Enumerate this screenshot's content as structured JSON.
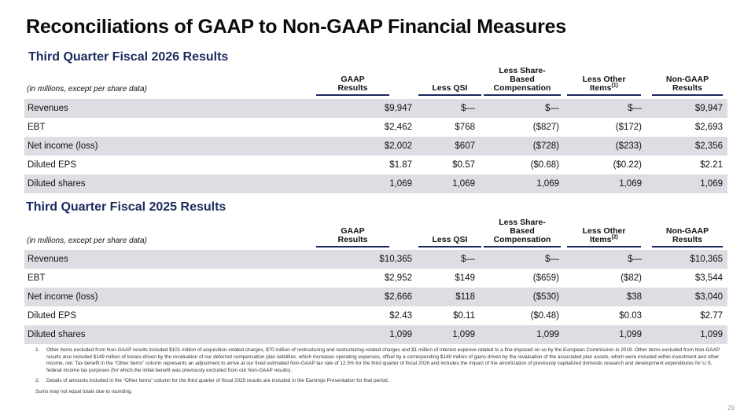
{
  "title": "Reconciliations of GAAP to Non-GAAP Financial Measures",
  "columns": {
    "unit_note": "(in millions, except per share data)",
    "gaap": [
      "GAAP",
      "Results"
    ],
    "qsi": "Less QSI",
    "sbc": [
      "Less Share-",
      "Based",
      "Compensation"
    ],
    "other": "Less Other",
    "other_line2": "Items",
    "nongaap": [
      "Non-GAAP",
      "Results"
    ]
  },
  "tables": [
    {
      "title": "Third Quarter Fiscal 2026 Results",
      "other_sup": "(1)",
      "rows": [
        {
          "label": "Revenues",
          "values": [
            "$9,947",
            "$—",
            "$—",
            "$—",
            "$9,947"
          ]
        },
        {
          "label": "EBT",
          "values": [
            "$2,462",
            "$768",
            "($827)",
            "($172)",
            "$2,693"
          ]
        },
        {
          "label": "Net income (loss)",
          "values": [
            "$2,002",
            "$607",
            "($728)",
            "($233)",
            "$2,356"
          ]
        },
        {
          "label": "Diluted EPS",
          "values": [
            "$1.87",
            "$0.57",
            "($0.68)",
            "($0.22)",
            "$2.21"
          ]
        },
        {
          "label": "Diluted shares",
          "values": [
            "1,069",
            "1,069",
            "1,069",
            "1,069",
            "1,069"
          ]
        }
      ]
    },
    {
      "title": "Third Quarter Fiscal 2025 Results",
      "other_sup": "(2)",
      "rows": [
        {
          "label": "Revenues",
          "values": [
            "$10,365",
            "$—",
            "$—",
            "$—",
            "$10,365"
          ]
        },
        {
          "label": "EBT",
          "values": [
            "$2,952",
            "$149",
            "($659)",
            "($82)",
            "$3,544"
          ]
        },
        {
          "label": "Net income (loss)",
          "values": [
            "$2,666",
            "$118",
            "($530)",
            "$38",
            "$3,040"
          ]
        },
        {
          "label": "Diluted EPS",
          "values": [
            "$2.43",
            "$0.11",
            "($0.48)",
            "$0.03",
            "$2.77"
          ]
        },
        {
          "label": "Diluted shares",
          "values": [
            "1,099",
            "1,099",
            "1,099",
            "1,099",
            "1,099"
          ]
        }
      ]
    }
  ],
  "footnotes": [
    {
      "num": "1.",
      "text": "Other items excluded from Non-GAAP results included $101 million of acquisition-related charges, $70 million of restructuring and restructuring-related charges and $1 million of interest expense related to a fine imposed on us by the European Commission in 2019. Other items excluded from Non-GAAP results also included $149 million of losses driven by the revaluation of our deferred compensation plan liabilities, which increases operating expenses, offset by a corresponding $149 million of gains driven by the revaluation of the associated plan assets, which were included within investment and other income, net. Tax benefit in the “Other Items” column represents an adjustment to arrive at our fixed estimated Non-GAAP tax rate of 12.5% for the third quarter of fiscal 2026 and includes the impact of the amortization of previously capitalized domestic research and development expenditures for U.S. federal income tax purposes (for which the initial benefit was previously excluded from our Non-GAAP results)."
    },
    {
      "num": "2.",
      "text": "Details of amounts included in the “Other Items” column for the third quarter of fiscal 2025 results are included in the Earnings Presentation for that period."
    }
  ],
  "sums_note": "Sums may not equal totals due to rounding.",
  "page_number": "29"
}
